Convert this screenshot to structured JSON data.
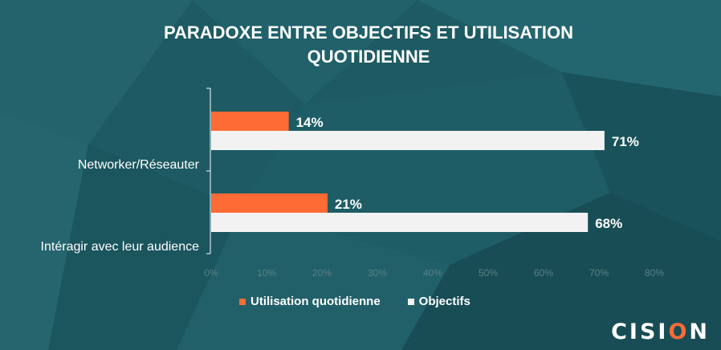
{
  "title_lines": [
    "PARADOXE ENTRE OBJECTIFS ET UTILISATION",
    "QUOTIDIENNE"
  ],
  "logo": {
    "prefix": "CISI",
    "accent": "O",
    "suffix": "N"
  },
  "colors": {
    "series1": "#ff6b35",
    "series2": "#f2f2f2",
    "background": "#1d5a63",
    "tick": "#5b7f84"
  },
  "chart_data": {
    "type": "bar",
    "orientation": "horizontal",
    "categories": [
      "Networker/Réseauter",
      "Intéragir avec leur audience"
    ],
    "series": [
      {
        "name": "Utilisation quotidienne",
        "values": [
          14,
          21
        ],
        "labels": [
          "14%",
          "21%"
        ]
      },
      {
        "name": "Objectifs",
        "values": [
          71,
          68
        ],
        "labels": [
          "71%",
          "68%"
        ]
      }
    ],
    "xlim": [
      0,
      80
    ],
    "xticks": [
      "0%",
      "10%",
      "20%",
      "30%",
      "40%",
      "50%",
      "60%",
      "70%",
      "80%"
    ],
    "grid": false,
    "legend_position": "bottom"
  }
}
